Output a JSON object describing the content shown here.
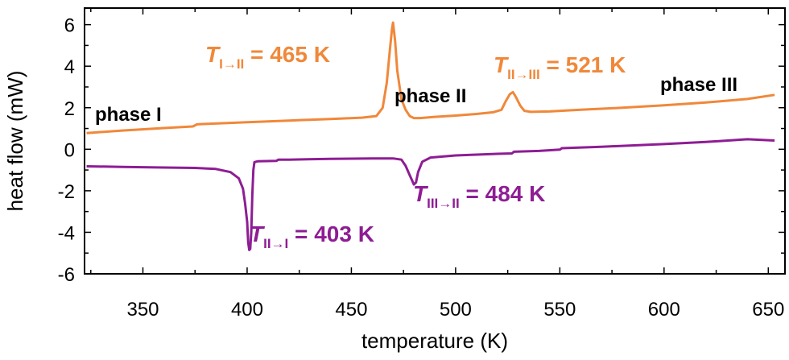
{
  "chart_data": {
    "type": "line",
    "title": "",
    "xlabel": "temperature (K)",
    "ylabel": "heat flow (mW)",
    "xlim": [
      322,
      658
    ],
    "ylim": [
      -6,
      6.8
    ],
    "x_ticks": [
      350,
      400,
      450,
      500,
      550,
      600,
      650
    ],
    "y_ticks": [
      -6,
      -4,
      -2,
      0,
      2,
      4,
      6
    ],
    "grid": false,
    "series": [
      {
        "color": "#f0883a",
        "points": [
          [
            323,
            0.78
          ],
          [
            340,
            0.9
          ],
          [
            360,
            1.02
          ],
          [
            374,
            1.1
          ],
          [
            376,
            1.2
          ],
          [
            380,
            1.22
          ],
          [
            400,
            1.3
          ],
          [
            420,
            1.38
          ],
          [
            440,
            1.46
          ],
          [
            455,
            1.52
          ],
          [
            462,
            1.6
          ],
          [
            465,
            2.0
          ],
          [
            467,
            3.2
          ],
          [
            468.5,
            4.8
          ],
          [
            469.5,
            5.8
          ],
          [
            470,
            6.1
          ],
          [
            471,
            5.2
          ],
          [
            472,
            3.8
          ],
          [
            474,
            2.4
          ],
          [
            476,
            1.9
          ],
          [
            478,
            1.6
          ],
          [
            480,
            1.5
          ],
          [
            483,
            1.5
          ],
          [
            490,
            1.56
          ],
          [
            500,
            1.62
          ],
          [
            510,
            1.7
          ],
          [
            518,
            1.78
          ],
          [
            522,
            1.9
          ],
          [
            524,
            2.3
          ],
          [
            526,
            2.65
          ],
          [
            527.5,
            2.75
          ],
          [
            529,
            2.5
          ],
          [
            531,
            2.1
          ],
          [
            533,
            1.85
          ],
          [
            536,
            1.8
          ],
          [
            545,
            1.82
          ],
          [
            560,
            1.9
          ],
          [
            580,
            2.0
          ],
          [
            600,
            2.12
          ],
          [
            620,
            2.25
          ],
          [
            640,
            2.42
          ],
          [
            653,
            2.62
          ]
        ]
      },
      {
        "color": "#8e1d94",
        "points": [
          [
            323,
            -0.82
          ],
          [
            340,
            -0.85
          ],
          [
            360,
            -0.88
          ],
          [
            375,
            -0.9
          ],
          [
            385,
            -0.95
          ],
          [
            392,
            -1.1
          ],
          [
            396,
            -1.4
          ],
          [
            398,
            -1.9
          ],
          [
            399,
            -2.6
          ],
          [
            400,
            -3.5
          ],
          [
            400.5,
            -4.5
          ],
          [
            401,
            -4.85
          ],
          [
            401.5,
            -4.8
          ],
          [
            402,
            -4.0
          ],
          [
            402.5,
            -2.2
          ],
          [
            403,
            -1.0
          ],
          [
            403.5,
            -0.62
          ],
          [
            405,
            -0.58
          ],
          [
            414,
            -0.56
          ],
          [
            415,
            -0.5
          ],
          [
            420,
            -0.5
          ],
          [
            440,
            -0.46
          ],
          [
            460,
            -0.44
          ],
          [
            470,
            -0.44
          ],
          [
            474,
            -0.5
          ],
          [
            476,
            -0.8
          ],
          [
            478,
            -1.25
          ],
          [
            480,
            -1.7
          ],
          [
            481,
            -1.6
          ],
          [
            482,
            -1.1
          ],
          [
            484,
            -0.6
          ],
          [
            488,
            -0.4
          ],
          [
            500,
            -0.3
          ],
          [
            520,
            -0.22
          ],
          [
            527,
            -0.2
          ],
          [
            528,
            -0.12
          ],
          [
            540,
            -0.08
          ],
          [
            550,
            -0.02
          ],
          [
            551,
            0.05
          ],
          [
            570,
            0.12
          ],
          [
            600,
            0.25
          ],
          [
            620,
            0.35
          ],
          [
            640,
            0.48
          ],
          [
            653,
            0.42
          ]
        ]
      }
    ],
    "phase_labels": [
      "phase I",
      "phase II",
      "phase III"
    ],
    "annotations": [
      {
        "base": "T",
        "sub": "I→II",
        "rest": " = 465 K",
        "color": "#f0883a"
      },
      {
        "base": "T",
        "sub": "II→III",
        "rest": " = 521 K",
        "color": "#f0883a"
      },
      {
        "base": "T",
        "sub": "II→I",
        "rest": " = 403 K",
        "color": "#8e1d94"
      },
      {
        "base": "T",
        "sub": "III→II",
        "rest": " = 484 K",
        "color": "#8e1d94"
      }
    ]
  }
}
